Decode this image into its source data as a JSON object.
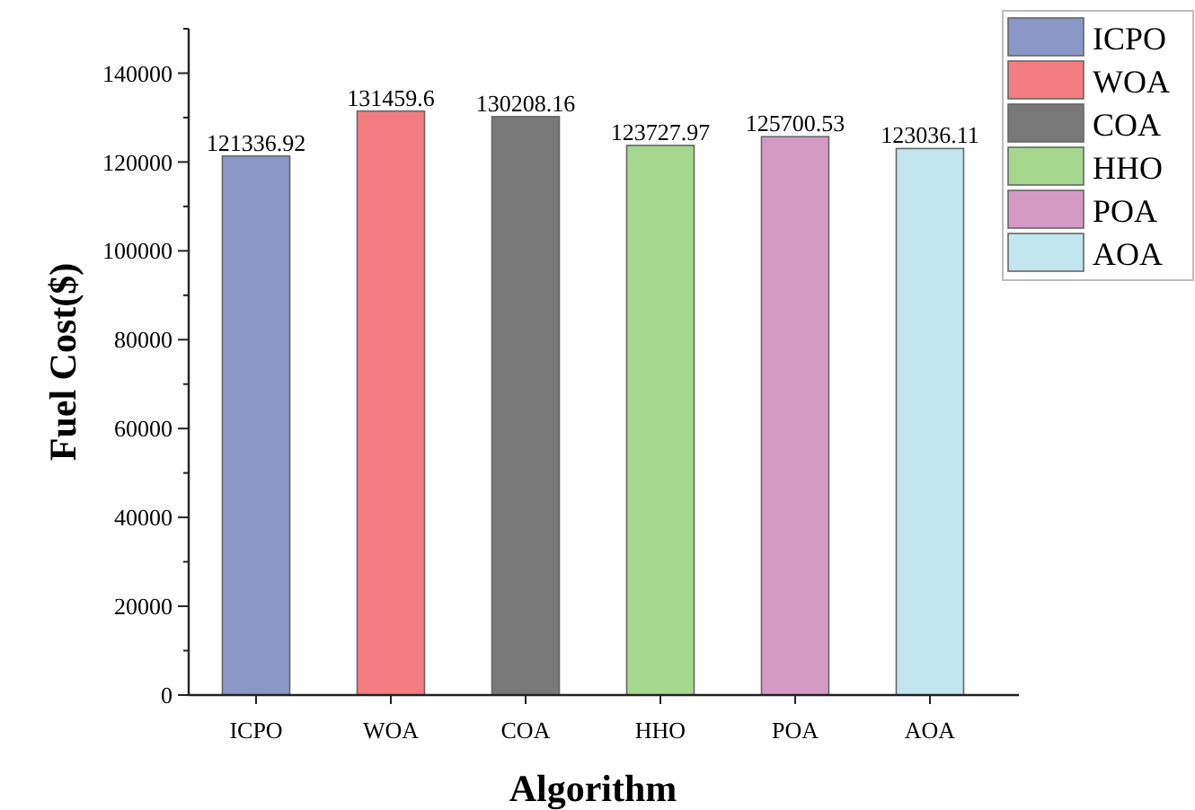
{
  "chart_data": {
    "type": "bar",
    "xlabel": "Algorithm",
    "ylabel": "Fuel Cost($)",
    "categories": [
      "ICPO",
      "WOA",
      "COA",
      "HHO",
      "POA",
      "AOA"
    ],
    "series": [
      {
        "name": "ICPO",
        "color": "#8a97c7",
        "values": [
          121336.92,
          null,
          null,
          null,
          null,
          null
        ]
      },
      {
        "name": "WOA",
        "color": "#f37e82",
        "values": [
          null,
          131459.6,
          null,
          null,
          null,
          null
        ]
      },
      {
        "name": "COA",
        "color": "#787878",
        "values": [
          null,
          null,
          130208.16,
          null,
          null,
          null
        ]
      },
      {
        "name": "HHO",
        "color": "#a6d78f",
        "values": [
          null,
          null,
          null,
          123727.97,
          null,
          null
        ]
      },
      {
        "name": "POA",
        "color": "#d59ac4",
        "values": [
          null,
          null,
          null,
          null,
          125700.53,
          null
        ]
      },
      {
        "name": "AOA",
        "color": "#c2e6ee",
        "values": [
          null,
          null,
          null,
          null,
          null,
          123036.11
        ]
      }
    ],
    "data_labels": true,
    "ylim": [
      0,
      150000
    ],
    "yticks": [
      0,
      {
        "value": 10000,
        "label": null
      },
      20000,
      {
        "value": 30000,
        "label": null
      },
      40000,
      {
        "value": 50000,
        "label": null
      },
      60000,
      {
        "value": 70000,
        "label": null
      },
      80000,
      {
        "value": 90000,
        "label": null
      },
      100000,
      {
        "value": 110000,
        "label": null
      },
      120000,
      {
        "value": 130000,
        "label": null
      },
      140000,
      {
        "value": 150000,
        "label": null
      }
    ],
    "grid": false,
    "legend": "top right"
  }
}
